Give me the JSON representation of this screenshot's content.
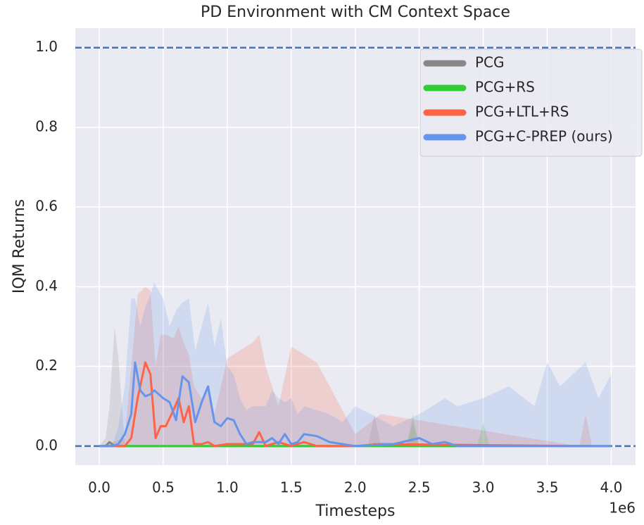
{
  "chart_data": {
    "type": "line",
    "title": "PD Environment with CM Context Space",
    "xlabel": "Timesteps",
    "ylabel": "IQM Returns",
    "x_offset_label": "1e6",
    "xlim": [
      -0.187,
      4.19
    ],
    "ylim": [
      -0.048,
      1.049
    ],
    "xticks": [
      {
        "value": 0,
        "label": "0.0"
      },
      {
        "value": 0.5,
        "label": "0.5"
      },
      {
        "value": 1,
        "label": "1.0"
      },
      {
        "value": 1.5,
        "label": "1.5"
      },
      {
        "value": 2,
        "label": "2.0"
      },
      {
        "value": 2.5,
        "label": "2.5"
      },
      {
        "value": 3,
        "label": "3.0"
      },
      {
        "value": 3.5,
        "label": "3.5"
      },
      {
        "value": 4,
        "label": "4.0"
      }
    ],
    "yticks": [
      {
        "value": 0,
        "label": "0.0"
      },
      {
        "value": 0.2,
        "label": "0.2"
      },
      {
        "value": 0.4,
        "label": "0.4"
      },
      {
        "value": 0.6,
        "label": "0.6"
      },
      {
        "value": 0.8,
        "label": "0.8"
      },
      {
        "value": 1,
        "label": "1.0"
      }
    ],
    "grid": true,
    "hlines": [
      0,
      1
    ],
    "hline_color": "#4c72b0",
    "legend": "upper right",
    "series": [
      {
        "name": "PCG",
        "color": "#888888",
        "x": [
          0,
          0.05,
          0.08,
          0.12,
          0.15,
          0.2,
          2.1,
          2.15,
          2.2,
          2.4,
          2.45,
          2.5,
          4.0
        ],
        "values": [
          0,
          0,
          0.01,
          0,
          0,
          0,
          0,
          0.005,
          0,
          0,
          0,
          0,
          0
        ],
        "upper": [
          0,
          0.02,
          0.1,
          0.3,
          0.22,
          0,
          0,
          0.08,
          0,
          0,
          0.06,
          0,
          0
        ]
      },
      {
        "name": "PCG+RS",
        "color": "#32cd32",
        "x": [
          0,
          2.4,
          2.45,
          2.5,
          2.95,
          3.0,
          3.05,
          4.0
        ],
        "values": [
          0,
          0,
          0,
          0,
          0,
          0,
          0,
          0
        ],
        "upper": [
          0,
          0,
          0.08,
          0,
          0,
          0.06,
          0,
          0
        ]
      },
      {
        "name": "PCG+LTL+RS",
        "color": "#ff6347",
        "x": [
          0,
          0.2,
          0.25,
          0.3,
          0.36,
          0.4,
          0.44,
          0.48,
          0.52,
          0.58,
          0.62,
          0.66,
          0.7,
          0.74,
          0.8,
          0.85,
          0.9,
          1.0,
          1.2,
          1.25,
          1.3,
          1.4,
          1.5,
          1.6,
          1.7,
          2.0,
          2.2,
          3.75,
          3.8,
          3.85,
          4.0
        ],
        "values": [
          0,
          0,
          0.02,
          0.12,
          0.21,
          0.18,
          0.02,
          0.05,
          0.05,
          0.09,
          0.12,
          0.06,
          0.1,
          0.005,
          0.005,
          0.01,
          0,
          0.005,
          0.005,
          0.035,
          0,
          0.01,
          0,
          0.01,
          0,
          0,
          0.005,
          0,
          0,
          0,
          0
        ],
        "upper": [
          0,
          0.02,
          0.2,
          0.38,
          0.4,
          0.39,
          0.2,
          0.28,
          0.28,
          0.27,
          0.3,
          0.26,
          0.23,
          0.15,
          0.12,
          0.15,
          0.08,
          0.22,
          0.26,
          0.28,
          0.2,
          0.1,
          0.25,
          0.23,
          0.21,
          0.03,
          0.08,
          0,
          0.08,
          0,
          0
        ]
      },
      {
        "name": "PCG+C-PREP (ours)",
        "color": "#6495ed",
        "x": [
          0,
          0.1,
          0.15,
          0.2,
          0.25,
          0.28,
          0.32,
          0.36,
          0.4,
          0.43,
          0.5,
          0.55,
          0.6,
          0.65,
          0.7,
          0.75,
          0.8,
          0.85,
          0.9,
          0.95,
          1.0,
          1.05,
          1.1,
          1.15,
          1.2,
          1.3,
          1.35,
          1.4,
          1.45,
          1.5,
          1.55,
          1.6,
          1.7,
          1.8,
          1.9,
          2.0,
          2.3,
          2.5,
          2.6,
          2.7,
          2.8,
          3.0,
          3.2,
          3.4,
          3.5,
          3.6,
          3.8,
          3.9,
          4.0
        ],
        "values": [
          0,
          0,
          0.005,
          0.03,
          0.08,
          0.21,
          0.14,
          0.125,
          0.13,
          0.14,
          0.12,
          0.11,
          0.065,
          0.175,
          0.16,
          0.06,
          0.11,
          0.15,
          0.06,
          0.05,
          0.07,
          0.065,
          0.03,
          0.005,
          0.01,
          0.01,
          0.02,
          0.005,
          0.03,
          0.005,
          0.01,
          0.03,
          0.025,
          0.01,
          0.005,
          0,
          0.005,
          0.02,
          0.005,
          0.01,
          0,
          0,
          0,
          0,
          0,
          0,
          0,
          0,
          0
        ],
        "upper": [
          0,
          0,
          0.05,
          0.15,
          0.37,
          0.37,
          0.3,
          0.35,
          0.38,
          0.41,
          0.37,
          0.3,
          0.34,
          0.36,
          0.37,
          0.24,
          0.3,
          0.36,
          0.25,
          0.32,
          0.2,
          0.18,
          0.12,
          0.09,
          0.1,
          0.1,
          0.14,
          0.12,
          0.11,
          0.12,
          0.08,
          0.1,
          0.09,
          0.08,
          0.06,
          0.1,
          0.05,
          0.08,
          0.1,
          0.12,
          0.1,
          0.12,
          0.15,
          0.1,
          0.21,
          0.15,
          0.21,
          0.12,
          0.18
        ]
      }
    ]
  }
}
